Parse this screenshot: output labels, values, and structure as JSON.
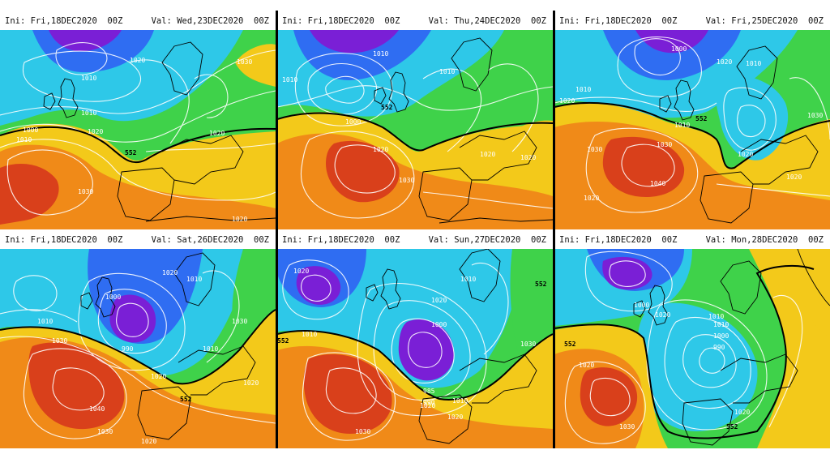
{
  "colors": {
    "low_core": "#7a1fd6",
    "low": "#2f6df2",
    "mid_low": "#2ec8e8",
    "neutral": "#3fd24a",
    "warm": "#f3c91a",
    "hot": "#f08a18",
    "high_core": "#d9401b",
    "isobar": "#ffffff",
    "coastline": "#000000"
  },
  "panels": [
    {
      "ini": "Ini: Fri,18DEC2020  00Z",
      "valid": "Val: Wed,23DEC2020  00Z",
      "isobar_labels": [
        {
          "text": "1010"
        },
        {
          "text": "1020"
        },
        {
          "text": "1010"
        },
        {
          "text": "1020"
        },
        {
          "text": "1030"
        },
        {
          "text": "1000"
        },
        {
          "text": "1010"
        },
        {
          "text": "1020"
        },
        {
          "text": "552"
        },
        {
          "text": "1030"
        },
        {
          "text": "1020"
        }
      ]
    },
    {
      "ini": "Ini: Fri,18DEC2020  00Z",
      "valid": "Val: Thu,24DEC2020  00Z",
      "isobar_labels": [
        {
          "text": "1010"
        },
        {
          "text": "1010"
        },
        {
          "text": "1010"
        },
        {
          "text": "552"
        },
        {
          "text": "1000"
        },
        {
          "text": "1020"
        },
        {
          "text": "1030"
        },
        {
          "text": "1020"
        },
        {
          "text": "1020"
        }
      ]
    },
    {
      "ini": "Ini: Fri,18DEC2020  00Z",
      "valid": "Val: Fri,25DEC2020  00Z",
      "isobar_labels": [
        {
          "text": "1000"
        },
        {
          "text": "1020"
        },
        {
          "text": "1010"
        },
        {
          "text": "1010"
        },
        {
          "text": "1020"
        },
        {
          "text": "1010"
        },
        {
          "text": "552"
        },
        {
          "text": "1030"
        },
        {
          "text": "1030"
        },
        {
          "text": "1040"
        },
        {
          "text": "1020"
        },
        {
          "text": "1020"
        },
        {
          "text": "1020"
        },
        {
          "text": "1030"
        }
      ]
    },
    {
      "ini": "Ini: Fri,18DEC2020  00Z",
      "valid": "Val: Sat,26DEC2020  00Z",
      "isobar_labels": [
        {
          "text": "1020"
        },
        {
          "text": "1010"
        },
        {
          "text": "1000"
        },
        {
          "text": "1010"
        },
        {
          "text": "1030"
        },
        {
          "text": "990"
        },
        {
          "text": "1010"
        },
        {
          "text": "1030"
        },
        {
          "text": "1020"
        },
        {
          "text": "1020"
        },
        {
          "text": "1040"
        },
        {
          "text": "1030"
        },
        {
          "text": "1020"
        },
        {
          "text": "552"
        }
      ]
    },
    {
      "ini": "Ini: Fri,18DEC2020  00Z",
      "valid": "Val: Sun,27DEC2020  00Z",
      "isobar_labels": [
        {
          "text": "1020"
        },
        {
          "text": "1010"
        },
        {
          "text": "1020"
        },
        {
          "text": "1000"
        },
        {
          "text": "1010"
        },
        {
          "text": "552"
        },
        {
          "text": "552"
        },
        {
          "text": "985"
        },
        {
          "text": "990"
        },
        {
          "text": "1010"
        },
        {
          "text": "1020"
        },
        {
          "text": "1020"
        },
        {
          "text": "1030"
        },
        {
          "text": "1030"
        }
      ]
    },
    {
      "ini": "Ini: Fri,18DEC2020  00Z",
      "valid": "Val: Mon,28DEC2020  00Z",
      "isobar_labels": [
        {
          "text": "1000"
        },
        {
          "text": "1010"
        },
        {
          "text": "1020"
        },
        {
          "text": "1010"
        },
        {
          "text": "1000"
        },
        {
          "text": "990"
        },
        {
          "text": "552"
        },
        {
          "text": "552"
        },
        {
          "text": "1020"
        },
        {
          "text": "1030"
        },
        {
          "text": "1020"
        }
      ]
    }
  ]
}
